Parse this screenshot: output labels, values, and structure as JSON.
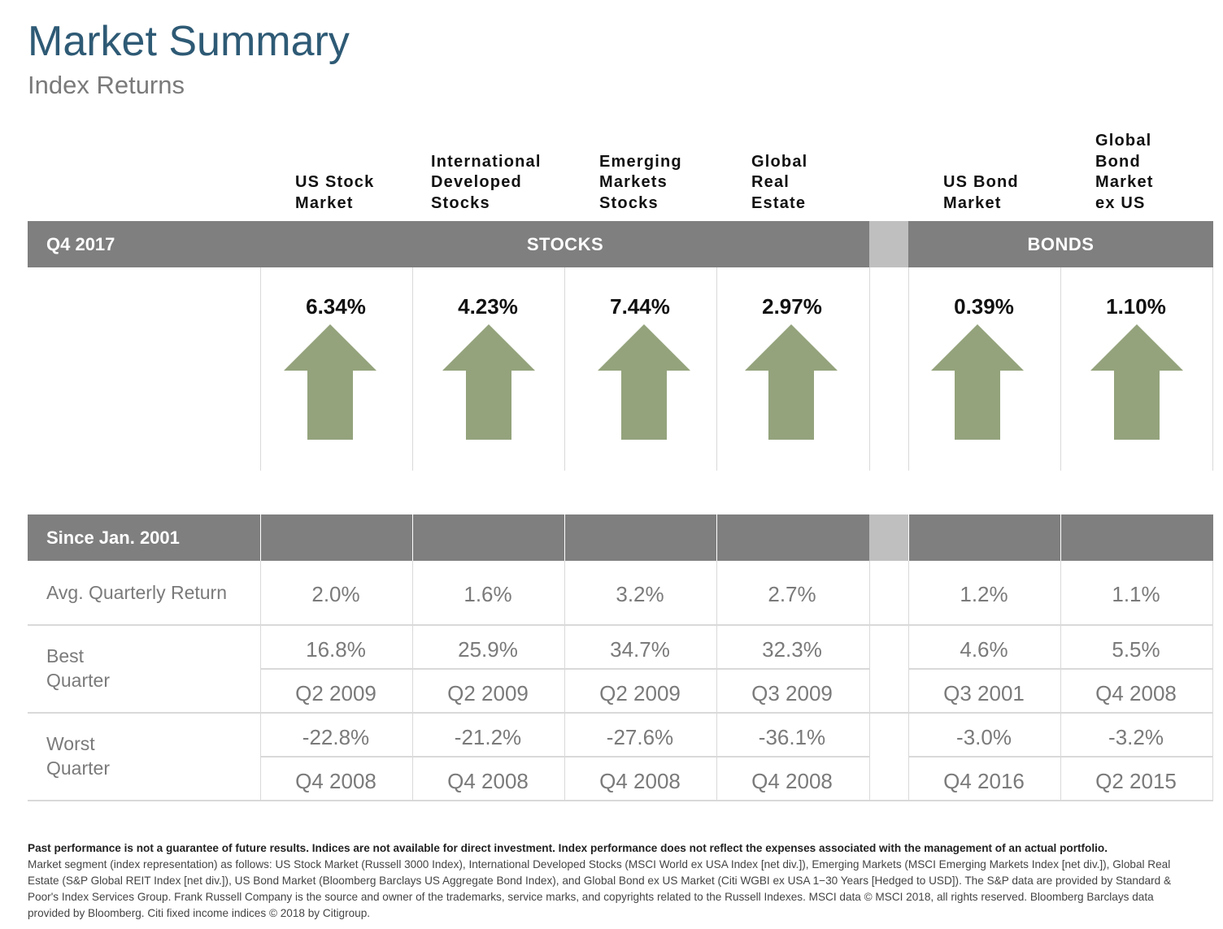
{
  "header": {
    "title": "Market Summary",
    "subtitle": "Index Returns"
  },
  "columns": [
    {
      "lines": [
        "US Stock",
        "Market"
      ]
    },
    {
      "lines": [
        "International",
        "Developed",
        "Stocks"
      ]
    },
    {
      "lines": [
        "Emerging",
        "Markets",
        "Stocks"
      ]
    },
    {
      "lines": [
        "Global",
        "Real",
        "Estate"
      ]
    },
    {
      "lines": [
        "US Bond",
        "Market"
      ]
    },
    {
      "lines": [
        "Global",
        "Bond",
        "Market",
        "ex US"
      ]
    }
  ],
  "quarter_bar": {
    "period_label": "Q4 2017",
    "stocks_label": "STOCKS",
    "bonds_label": "BONDS"
  },
  "quarter_returns": {
    "values": [
      "6.34%",
      "4.23%",
      "7.44%",
      "2.97%",
      "0.39%",
      "1.10%"
    ],
    "direction": [
      "up",
      "up",
      "up",
      "up",
      "up",
      "up"
    ],
    "arrow_color": "#94a37c"
  },
  "since_bar": {
    "label": "Since Jan. 2001"
  },
  "rows": {
    "avg_label": "Avg. Quarterly Return",
    "avg_values": [
      "2.0%",
      "1.6%",
      "3.2%",
      "2.7%",
      "1.2%",
      "1.1%"
    ],
    "best_label_1": "Best",
    "best_label_2": "Quarter",
    "best_values": [
      "16.8%",
      "25.9%",
      "34.7%",
      "32.3%",
      "4.6%",
      "5.5%"
    ],
    "best_quarters": [
      "Q2 2009",
      "Q2 2009",
      "Q2 2009",
      "Q3 2009",
      "Q3 2001",
      "Q4 2008"
    ],
    "worst_label_1": "Worst",
    "worst_label_2": "Quarter",
    "worst_values": [
      "-22.8%",
      "-21.2%",
      "-27.6%",
      "-36.1%",
      "-3.0%",
      "-3.2%"
    ],
    "worst_quarters": [
      "Q4 2008",
      "Q4 2008",
      "Q4 2008",
      "Q4 2008",
      "Q4 2016",
      "Q2 2015"
    ]
  },
  "footer": {
    "bold_line": "Past performance is not a guarantee of future results. Indices are not available for direct investment. Index performance does not reflect the expenses associated with the management of an actual portfolio.",
    "body": "Market segment (index representation) as follows: US Stock Market (Russell 3000 Index), International Developed Stocks (MSCI World ex USA Index [net div.]), Emerging Markets (MSCI Emerging Markets Index [net div.]), Global Real Estate (S&P Global REIT Index [net div.]), US Bond Market (Bloomberg Barclays US Aggregate Bond Index), and Global Bond ex US Market (Citi WGBI ex USA 1−30 Years [Hedged to USD]). The S&P data are provided by Standard & Poor's Index Services Group. Frank Russell Company is the source and owner of the trademarks, service marks, and copyrights related to the Russell Indexes. MSCI data © MSCI 2018, all rights reserved. Bloomberg Barclays data provided by Bloomberg. Citi fixed income indices © 2018 by Citigroup."
  },
  "colors": {
    "title": "#2e5a75",
    "bar": "#7f7f7f",
    "gap": "#bfbfbf",
    "muted_text": "#7a7a7a"
  }
}
